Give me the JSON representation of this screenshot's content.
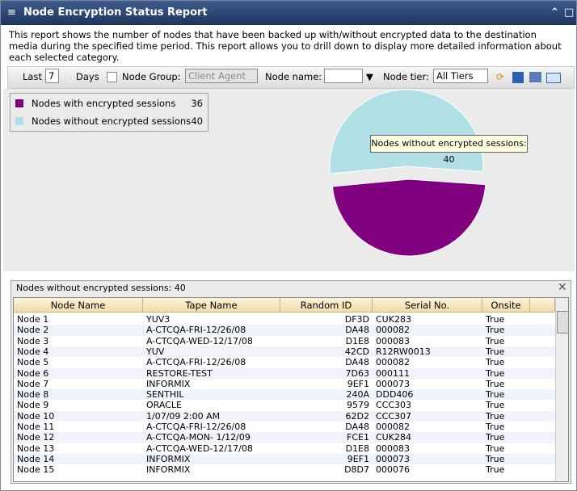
{
  "header": {
    "title": "Node Encryption Status Report"
  },
  "description": "This report shows the number of nodes that have been backed up with/without encrypted data to the destination media during the specified time period. This report allows you to drill down to display more detailed information about each selected category.",
  "toolbar": {
    "last_label": "Last",
    "last_value": "7",
    "days_label": "Days",
    "node_group_label": "Node Group:",
    "node_group_value": "Client Agent",
    "node_name_label": "Node name:",
    "node_tier_label": "Node tier:",
    "node_tier_value": "All Tiers"
  },
  "chart_data": {
    "type": "pie",
    "categories": [
      "Nodes with encrypted sessions",
      "Nodes without encrypted sessions"
    ],
    "values": [
      36,
      40
    ],
    "colors": [
      "#800080",
      "#b0dfe5"
    ],
    "tooltip": "Nodes without encrypted sessions: 40"
  },
  "table": {
    "caption": "Nodes without encrypted sessions: 40",
    "columns": [
      "Node Name",
      "Tape Name",
      "Random ID",
      "Serial No.",
      "Onsite"
    ],
    "rows": [
      [
        "Node 1",
        "YUV3",
        "DF3D",
        "CUK283",
        "True"
      ],
      [
        "Node 2",
        "A-CTCQA-FRI-12/26/08",
        "DA48",
        "000082",
        "True"
      ],
      [
        "Node 3",
        "A-CTCQA-WED-12/17/08",
        "D1E8",
        "000083",
        "True"
      ],
      [
        "Node 4",
        "YUV",
        "42CD",
        "R12RW0013",
        "True"
      ],
      [
        "Node 5",
        "A-CTCQA-FRI-12/26/08",
        "DA48",
        "000082",
        "True"
      ],
      [
        "Node 6",
        "RESTORE-TEST",
        "7D63",
        "000111",
        "True"
      ],
      [
        "Node 7",
        "INFORMIX",
        "9EF1",
        "000073",
        "True"
      ],
      [
        "Node 8",
        "SENTHIL",
        "240A",
        "DDD406",
        "True"
      ],
      [
        "Node 9",
        "ORACLE",
        "9579",
        "CCC303",
        "True"
      ],
      [
        "Node 10",
        "1/07/09 2:00 AM",
        "62D2",
        "CCC307",
        "True"
      ],
      [
        "Node 11",
        "A-CTCQA-FRI-12/26/08",
        "DA48",
        "000082",
        "True"
      ],
      [
        "Node 12",
        "A-CTCQA-MON- 1/12/09",
        "FCE1",
        "CUK284",
        "True"
      ],
      [
        "Node 13",
        "A-CTCQA-WED-12/17/08",
        "D1E8",
        "000083",
        "True"
      ],
      [
        "Node 14",
        "INFORMIX",
        "9EF1",
        "000073",
        "True"
      ],
      [
        "Node 15",
        "INFORMIX",
        "D8D7",
        "000076",
        "True"
      ]
    ]
  }
}
